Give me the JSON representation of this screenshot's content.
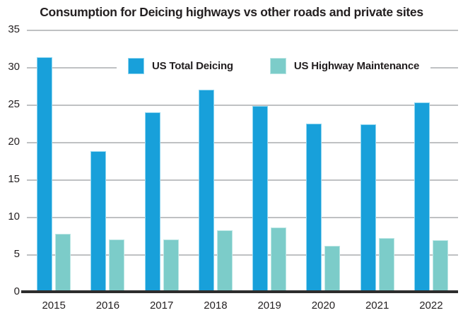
{
  "chart_data": {
    "type": "bar",
    "title": "Consumption for Deicing highways vs other roads and private sites",
    "categories": [
      "2015",
      "2016",
      "2017",
      "2018",
      "2019",
      "2020",
      "2021",
      "2022"
    ],
    "series": [
      {
        "name": "US Total Deicing",
        "color": "#18a0da",
        "edge_color": "#8ed6f0",
        "values": [
          31.3,
          18.8,
          24.0,
          27.0,
          24.8,
          22.5,
          22.4,
          25.3
        ]
      },
      {
        "name": "US Highway Maintenance",
        "color": "#7cccc9",
        "edge_color": "#bce7e5",
        "values": [
          7.7,
          7.0,
          7.0,
          8.2,
          8.6,
          6.1,
          7.2,
          6.9
        ]
      }
    ],
    "ylim": [
      0,
      35
    ],
    "yticks": [
      0,
      5,
      10,
      15,
      20,
      25,
      30,
      35
    ],
    "grid": true,
    "legend_position": "inside-top",
    "colors": {
      "grid": "#bfc1c3",
      "axis": "#2d2d2d",
      "text": "#231f20",
      "background": "#ffffff"
    }
  }
}
